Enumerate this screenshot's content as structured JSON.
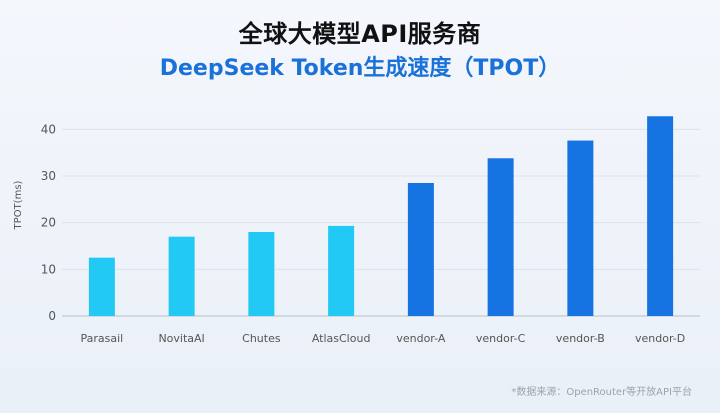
{
  "chart_data": {
    "type": "bar",
    "title": "全球大模型API服务商",
    "subtitle": "DeepSeek Token生成速度（TPOT）",
    "xlabel": "",
    "ylabel": "TPOT(ms)",
    "ylim": [
      0,
      45
    ],
    "yticks": [
      0,
      10,
      20,
      30,
      40
    ],
    "grid": true,
    "categories": [
      "Parasail",
      "NovitaAI",
      "Chutes",
      "AtlasCloud",
      "vendor-A",
      "vendor-C",
      "vendor-B",
      "vendor-D"
    ],
    "values": [
      12.5,
      17,
      18,
      19.3,
      28.5,
      33.8,
      37.6,
      42.8
    ],
    "colors": [
      "#21c9f4",
      "#21c9f4",
      "#21c9f4",
      "#21c9f4",
      "#1673e2",
      "#1673e2",
      "#1673e2",
      "#1673e2"
    ]
  },
  "source_note": "*数据来源：OpenRouter等开放API平台"
}
